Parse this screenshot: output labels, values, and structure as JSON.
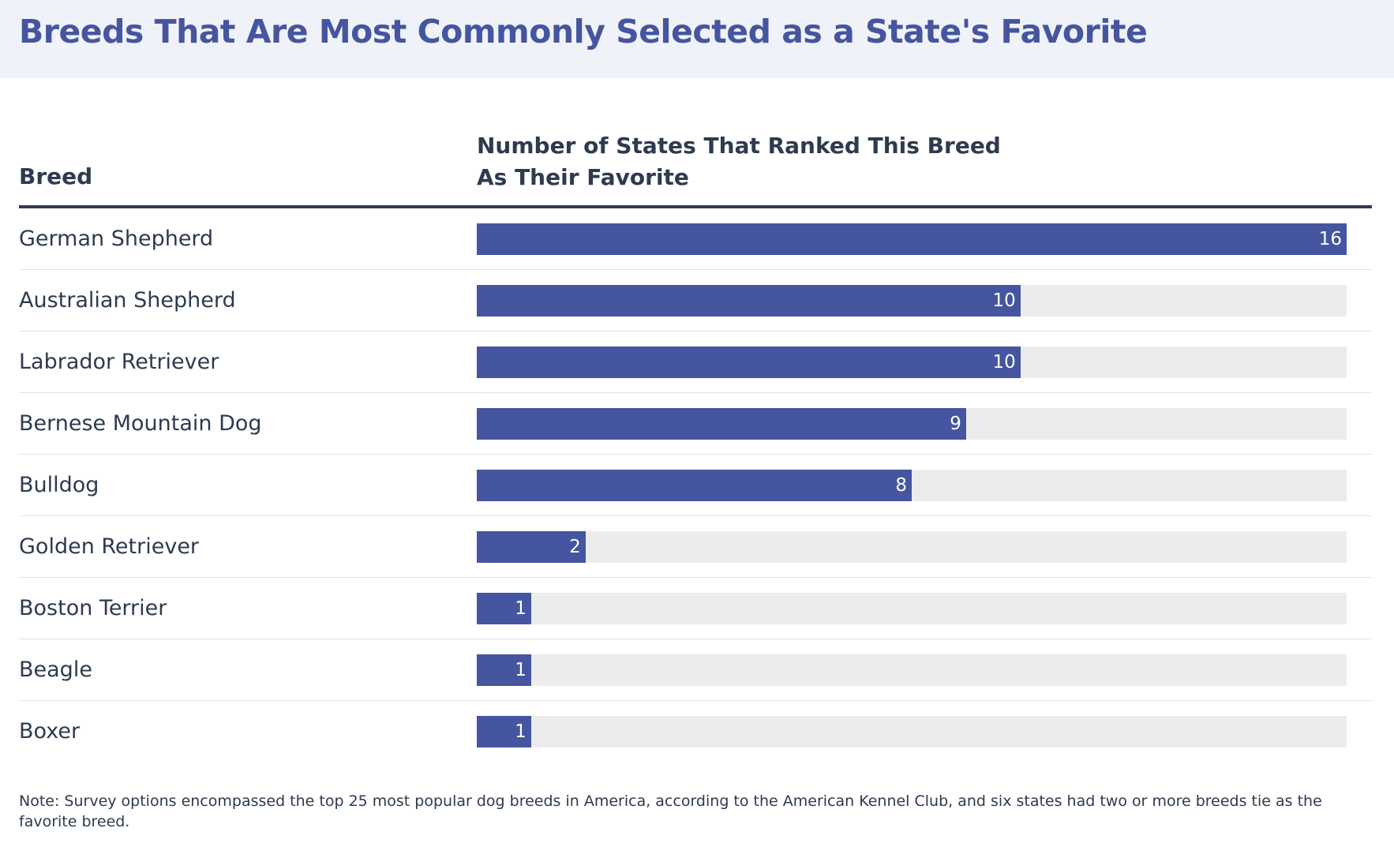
{
  "header": {
    "title": "Breeds That Are Most Commonly Selected as a State's Favorite"
  },
  "table": {
    "col_breed": "Breed",
    "col_count_line1": "Number of States That Ranked This Breed",
    "col_count_line2": "As Their Favorite"
  },
  "chart_data": {
    "type": "bar",
    "orientation": "horizontal",
    "categories": [
      "German Shepherd",
      "Australian Shepherd",
      "Labrador Retriever",
      "Bernese Mountain Dog",
      "Bulldog",
      "Golden Retriever",
      "Boston Terrier",
      "Beagle",
      "Boxer"
    ],
    "values": [
      16,
      10,
      10,
      9,
      8,
      2,
      1,
      1,
      1
    ],
    "xlim": [
      0,
      16
    ],
    "bar_color": "#45559f",
    "track_color": "#ececec",
    "data_labels": true
  },
  "footer": {
    "note": "Note: Survey options encompassed the top 25 most popular dog breeds in America, according to the American Kennel Club, and six states had two or more breeds tie as the favorite breed."
  }
}
